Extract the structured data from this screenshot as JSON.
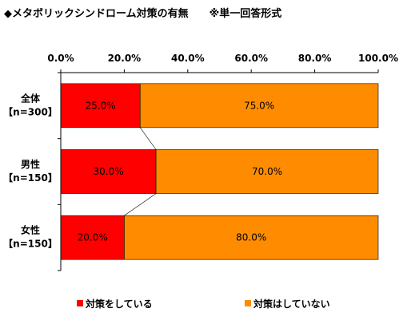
{
  "chart_data": {
    "type": "bar",
    "orientation": "horizontal",
    "stacked": "percent",
    "title": "◆メタボリックシンドローム対策の有無　　※単一回答形式",
    "categories": [
      {
        "name": "全体",
        "n": "【n=300】"
      },
      {
        "name": "男性",
        "n": "【n=150】"
      },
      {
        "name": "女性",
        "n": "【n=150】"
      }
    ],
    "series": [
      {
        "name": "対策をしている",
        "color": "#ff0000",
        "values": [
          25.0,
          30.0,
          20.0
        ],
        "labels": [
          "25.0%",
          "30.0%",
          "20.0%"
        ]
      },
      {
        "name": "対策はしていない",
        "color": "#ff8c00",
        "values": [
          75.0,
          70.0,
          80.0
        ],
        "labels": [
          "75.0%",
          "70.0%",
          "80.0%"
        ]
      }
    ],
    "xlim": [
      0,
      100
    ],
    "xticks": [
      "0.0%",
      "20.0%",
      "40.0%",
      "60.0%",
      "80.0%",
      "100.0%"
    ],
    "grid": false,
    "series_lines": true,
    "legend_position": "bottom"
  }
}
